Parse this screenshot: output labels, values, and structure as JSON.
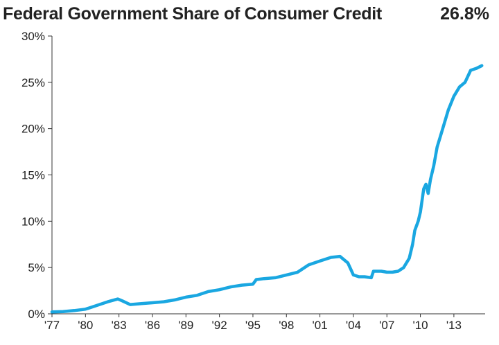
{
  "chart_data": {
    "type": "line",
    "title": "Federal Government Share of Consumer Credit",
    "latest_value_label": "26.8%",
    "xlabel": "",
    "ylabel": "",
    "xlim": [
      1977,
      2015.8
    ],
    "ylim": [
      0,
      30
    ],
    "y_ticks": [
      {
        "value": 0,
        "label": "0%"
      },
      {
        "value": 5,
        "label": "5%"
      },
      {
        "value": 10,
        "label": "10%"
      },
      {
        "value": 15,
        "label": "15%"
      },
      {
        "value": 20,
        "label": "20%"
      },
      {
        "value": 25,
        "label": "25%"
      },
      {
        "value": 30,
        "label": "30%"
      }
    ],
    "x_ticks": [
      {
        "value": 1977,
        "label": "'77"
      },
      {
        "value": 1980,
        "label": "'80"
      },
      {
        "value": 1983,
        "label": "'83"
      },
      {
        "value": 1986,
        "label": "'86"
      },
      {
        "value": 1989,
        "label": "'89"
      },
      {
        "value": 1992,
        "label": "'92"
      },
      {
        "value": 1995,
        "label": "'95"
      },
      {
        "value": 1998,
        "label": "'98"
      },
      {
        "value": 2001,
        "label": "'01"
      },
      {
        "value": 2004,
        "label": "'04"
      },
      {
        "value": 2007,
        "label": "'07"
      },
      {
        "value": 2010,
        "label": "'10"
      },
      {
        "value": 2013,
        "label": "'13"
      }
    ],
    "series": [
      {
        "name": "Federal Government Share of Consumer Credit",
        "color": "#1aa7e1",
        "x": [
          1977.0,
          1978.0,
          1979.0,
          1980.0,
          1981.0,
          1982.0,
          1982.9,
          1983.3,
          1984.0,
          1985.0,
          1986.0,
          1987.0,
          1988.0,
          1989.0,
          1990.0,
          1991.0,
          1992.0,
          1993.0,
          1994.0,
          1995.0,
          1995.3,
          1996.0,
          1997.0,
          1998.0,
          1999.0,
          2000.0,
          2001.0,
          2002.0,
          2002.8,
          2003.5,
          2004.0,
          2004.5,
          2005.0,
          2005.6,
          2005.8,
          2006.5,
          2007.0,
          2007.5,
          2008.0,
          2008.5,
          2009.0,
          2009.3,
          2009.5,
          2009.8,
          2010.0,
          2010.3,
          2010.5,
          2010.7,
          2010.9,
          2011.0,
          2011.2,
          2011.5,
          2012.0,
          2012.5,
          2013.0,
          2013.5,
          2014.0,
          2014.5,
          2015.0,
          2015.5
        ],
        "values": [
          0.2,
          0.25,
          0.35,
          0.5,
          0.9,
          1.3,
          1.6,
          1.4,
          1.0,
          1.1,
          1.2,
          1.3,
          1.5,
          1.8,
          2.0,
          2.4,
          2.6,
          2.9,
          3.1,
          3.2,
          3.7,
          3.8,
          3.9,
          4.2,
          4.5,
          5.3,
          5.7,
          6.1,
          6.2,
          5.5,
          4.2,
          4.0,
          4.0,
          3.9,
          4.6,
          4.6,
          4.5,
          4.5,
          4.6,
          5.0,
          6.0,
          7.5,
          9.0,
          10.0,
          11.0,
          13.5,
          14.0,
          13.0,
          14.5,
          15.0,
          16.0,
          18.0,
          20.0,
          22.0,
          23.5,
          24.5,
          25.0,
          26.3,
          26.5,
          26.8
        ]
      }
    ]
  }
}
